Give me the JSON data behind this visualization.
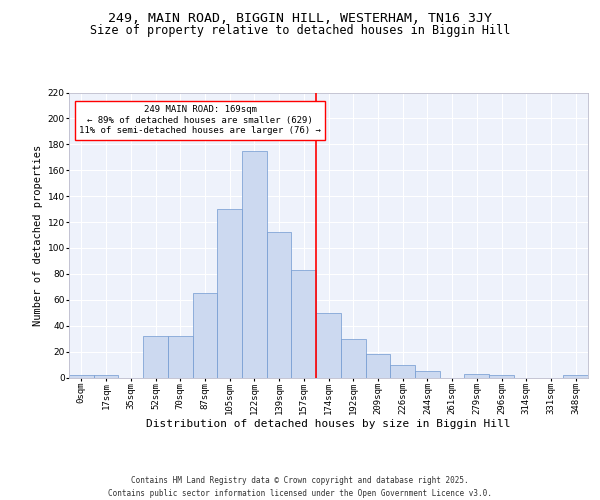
{
  "title1": "249, MAIN ROAD, BIGGIN HILL, WESTERHAM, TN16 3JY",
  "title2": "Size of property relative to detached houses in Biggin Hill",
  "xlabel": "Distribution of detached houses by size in Biggin Hill",
  "ylabel": "Number of detached properties",
  "bar_color": "#ccd9f0",
  "bar_edge_color": "#7098d0",
  "vline_color": "red",
  "vline_x": 9.5,
  "annotation_text": "249 MAIN ROAD: 169sqm\n← 89% of detached houses are smaller (629)\n11% of semi-detached houses are larger (76) →",
  "annotation_box_color": "white",
  "annotation_box_edge_color": "red",
  "categories": [
    "0sqm",
    "17sqm",
    "35sqm",
    "52sqm",
    "70sqm",
    "87sqm",
    "105sqm",
    "122sqm",
    "139sqm",
    "157sqm",
    "174sqm",
    "192sqm",
    "209sqm",
    "226sqm",
    "244sqm",
    "261sqm",
    "279sqm",
    "296sqm",
    "314sqm",
    "331sqm",
    "348sqm"
  ],
  "bar_heights": [
    2,
    2,
    0,
    32,
    32,
    65,
    130,
    175,
    112,
    83,
    50,
    30,
    18,
    10,
    5,
    0,
    3,
    2,
    0,
    0,
    2
  ],
  "ylim": [
    0,
    220
  ],
  "yticks": [
    0,
    20,
    40,
    60,
    80,
    100,
    120,
    140,
    160,
    180,
    200,
    220
  ],
  "footer": "Contains HM Land Registry data © Crown copyright and database right 2025.\nContains public sector information licensed under the Open Government Licence v3.0.",
  "bg_color": "#eef2fb",
  "title1_fontsize": 9.5,
  "title2_fontsize": 8.5,
  "xlabel_fontsize": 8,
  "ylabel_fontsize": 7.5,
  "tick_fontsize": 6.5,
  "annotation_fontsize": 6.5,
  "footer_fontsize": 5.5
}
